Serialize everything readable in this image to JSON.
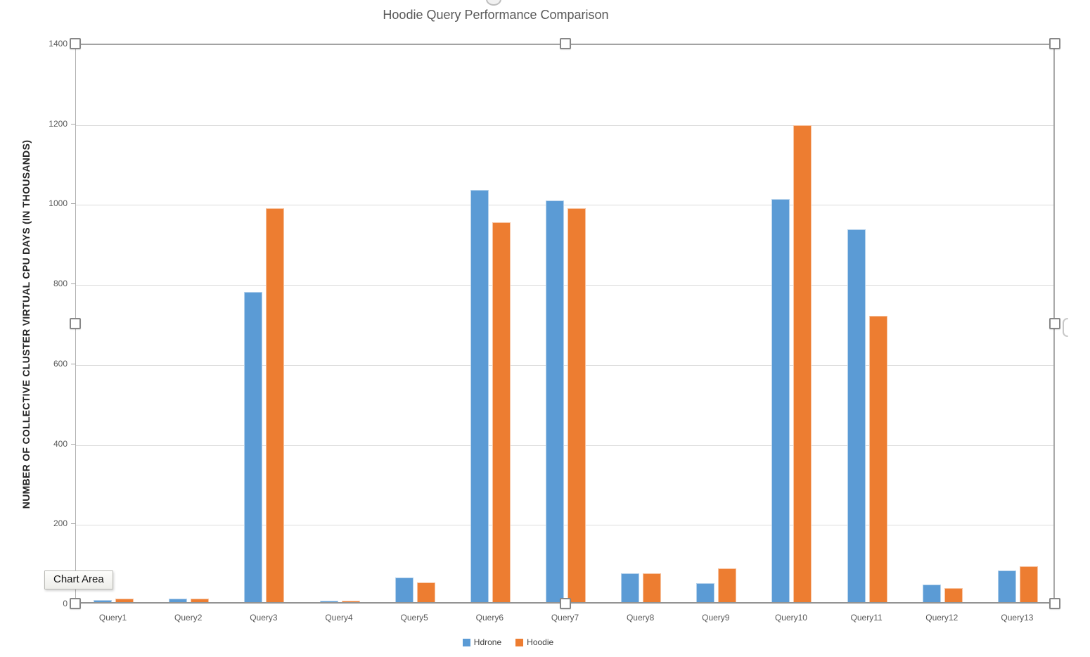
{
  "chart_data": {
    "type": "bar",
    "title": "Hoodie Query Performance Comparison",
    "xlabel": "",
    "ylabel": "NUMBER OF COLLECTIVE CLUSTER VIRTUAL CPU DAYS (IN THOUSANDS)",
    "categories": [
      "Query1",
      "Query2",
      "Query3",
      "Query4",
      "Query5",
      "Query6",
      "Query7",
      "Query8",
      "Query9",
      "Query10",
      "Query11",
      "Query12",
      "Query13"
    ],
    "series": [
      {
        "name": "Hdrone",
        "color": "#5B9BD5",
        "values": [
          5,
          8,
          775,
          4,
          62,
          1030,
          1005,
          73,
          48,
          1008,
          933,
          44,
          80
        ]
      },
      {
        "name": "Hoodie",
        "color": "#ED7D31",
        "values": [
          8,
          8,
          985,
          4,
          50,
          950,
          985,
          72,
          85,
          1193,
          715,
          35,
          90
        ]
      }
    ],
    "ylim": [
      0,
      1400
    ],
    "yticks": [
      0,
      200,
      400,
      600,
      800,
      1000,
      1200,
      1400
    ],
    "grid": true,
    "legend_position": "bottom",
    "gridline_color": "#dcdcdc",
    "tick_label_color": "#595959",
    "title_color": "#595959"
  },
  "tooltip": {
    "label": "Chart Area"
  },
  "selection": {
    "handle_names": [
      "top-left",
      "top-center",
      "top-right",
      "mid-left",
      "mid-right",
      "bottom-left",
      "bottom-center",
      "bottom-right"
    ]
  }
}
